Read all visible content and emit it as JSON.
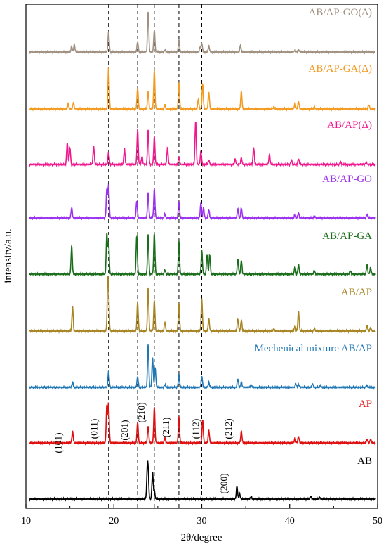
{
  "chart_data": {
    "type": "line",
    "title": "",
    "xlabel": "2θ/degree",
    "ylabel": "intensity/a.u.",
    "xlim": [
      10,
      50
    ],
    "xticks": [
      10,
      20,
      30,
      40,
      50
    ],
    "dashed_lines_x": [
      19.4,
      22.7,
      24.6,
      27.4,
      30.0
    ],
    "series": [
      {
        "name": "AB/AP-GO(Δ)",
        "color": "#a09080",
        "peaks": [
          [
            15.2,
            0.14
          ],
          [
            15.5,
            0.18
          ],
          [
            19.4,
            0.5
          ],
          [
            22.7,
            0.25
          ],
          [
            23.9,
            1.0
          ],
          [
            24.6,
            0.55
          ],
          [
            25.8,
            0.05
          ],
          [
            27.4,
            0.3
          ],
          [
            29.8,
            0.12
          ],
          [
            30.0,
            0.22
          ],
          [
            30.8,
            0.16
          ],
          [
            34.4,
            0.16
          ],
          [
            40.6,
            0.05
          ],
          [
            41.0,
            0.06
          ]
        ]
      },
      {
        "name": "AB/AP-GA(Δ)",
        "color": "#f39a20",
        "peaks": [
          [
            14.8,
            0.12
          ],
          [
            15.4,
            0.15
          ],
          [
            19.4,
            1.0
          ],
          [
            22.7,
            0.5
          ],
          [
            23.9,
            0.42
          ],
          [
            24.6,
            0.92
          ],
          [
            25.8,
            0.1
          ],
          [
            27.4,
            0.62
          ],
          [
            29.6,
            0.22
          ],
          [
            30.1,
            0.6
          ],
          [
            30.8,
            0.4
          ],
          [
            34.5,
            0.42
          ],
          [
            38.2,
            0.05
          ],
          [
            40.6,
            0.14
          ],
          [
            41.0,
            0.18
          ],
          [
            42.8,
            0.05
          ],
          [
            49.0,
            0.1
          ]
        ]
      },
      {
        "name": "AB/AP(Δ)",
        "color": "#f0188c",
        "peaks": [
          [
            14.7,
            0.5
          ],
          [
            15.0,
            0.38
          ],
          [
            17.7,
            0.42
          ],
          [
            19.4,
            0.28
          ],
          [
            21.2,
            0.35
          ],
          [
            22.7,
            0.78
          ],
          [
            23.2,
            0.18
          ],
          [
            23.9,
            0.78
          ],
          [
            24.6,
            0.62
          ],
          [
            26.1,
            0.38
          ],
          [
            27.4,
            0.18
          ],
          [
            29.3,
            0.98
          ],
          [
            29.9,
            0.3
          ],
          [
            30.8,
            0.1
          ],
          [
            33.8,
            0.12
          ],
          [
            34.5,
            0.15
          ],
          [
            35.9,
            0.38
          ],
          [
            37.7,
            0.22
          ],
          [
            40.2,
            0.1
          ],
          [
            41.0,
            0.13
          ],
          [
            45.8,
            0.05
          ],
          [
            48.7,
            0.05
          ]
        ]
      },
      {
        "name": "AB/AP-GO",
        "color": "#9b30ee",
        "peaks": [
          [
            15.2,
            0.25
          ],
          [
            19.2,
            0.72
          ],
          [
            19.4,
            0.82
          ],
          [
            22.6,
            0.42
          ],
          [
            23.9,
            0.62
          ],
          [
            24.6,
            0.72
          ],
          [
            25.8,
            0.1
          ],
          [
            27.4,
            0.42
          ],
          [
            29.9,
            0.38
          ],
          [
            30.2,
            0.25
          ],
          [
            30.8,
            0.2
          ],
          [
            34.1,
            0.22
          ],
          [
            34.5,
            0.25
          ],
          [
            40.6,
            0.1
          ],
          [
            41.0,
            0.12
          ],
          [
            42.8,
            0.05
          ],
          [
            48.8,
            0.08
          ]
        ]
      },
      {
        "name": "AB/AP-GA",
        "color": "#1a6d1a",
        "peaks": [
          [
            15.2,
            0.65
          ],
          [
            19.2,
            0.95
          ],
          [
            19.4,
            0.75
          ],
          [
            22.6,
            0.9
          ],
          [
            23.9,
            0.9
          ],
          [
            24.6,
            0.95
          ],
          [
            25.8,
            0.1
          ],
          [
            27.4,
            0.75
          ],
          [
            30.0,
            0.55
          ],
          [
            30.6,
            0.45
          ],
          [
            30.9,
            0.45
          ],
          [
            34.1,
            0.35
          ],
          [
            34.5,
            0.32
          ],
          [
            40.6,
            0.18
          ],
          [
            41.0,
            0.22
          ],
          [
            42.8,
            0.08
          ],
          [
            46.9,
            0.08
          ],
          [
            48.8,
            0.22
          ],
          [
            49.2,
            0.15
          ]
        ]
      },
      {
        "name": "AB/AP",
        "color": "#a88524",
        "peaks": [
          [
            15.3,
            0.55
          ],
          [
            19.3,
            0.88
          ],
          [
            19.4,
            0.72
          ],
          [
            22.7,
            0.65
          ],
          [
            23.9,
            0.98
          ],
          [
            24.6,
            0.7
          ],
          [
            25.8,
            0.2
          ],
          [
            27.4,
            0.62
          ],
          [
            30.0,
            0.72
          ],
          [
            30.8,
            0.28
          ],
          [
            34.1,
            0.28
          ],
          [
            34.5,
            0.25
          ],
          [
            38.2,
            0.05
          ],
          [
            40.6,
            0.12
          ],
          [
            41.0,
            0.45
          ],
          [
            42.8,
            0.05
          ],
          [
            48.8,
            0.12
          ],
          [
            49.2,
            0.08
          ]
        ]
      },
      {
        "name": "Mechenical mixture AB/AP",
        "color": "#1f77b4",
        "peaks": [
          [
            15.3,
            0.12
          ],
          [
            19.4,
            0.38
          ],
          [
            22.7,
            0.24
          ],
          [
            23.9,
            1.0
          ],
          [
            24.4,
            0.7
          ],
          [
            24.7,
            0.45
          ],
          [
            25.8,
            0.06
          ],
          [
            27.4,
            0.3
          ],
          [
            30.0,
            0.26
          ],
          [
            30.8,
            0.12
          ],
          [
            34.1,
            0.2
          ],
          [
            34.5,
            0.12
          ],
          [
            35.6,
            0.06
          ],
          [
            40.7,
            0.08
          ],
          [
            41.0,
            0.07
          ],
          [
            42.6,
            0.08
          ],
          [
            43.5,
            0.05
          ],
          [
            48.8,
            0.05
          ]
        ]
      },
      {
        "name": "AP",
        "color": "#e00f0f",
        "peaks": [
          [
            15.3,
            0.28
          ],
          [
            19.2,
            0.9
          ],
          [
            19.4,
            0.95
          ],
          [
            22.7,
            0.5
          ],
          [
            23.9,
            0.4
          ],
          [
            24.6,
            0.86
          ],
          [
            25.8,
            0.12
          ],
          [
            27.4,
            0.62
          ],
          [
            30.1,
            0.55
          ],
          [
            30.8,
            0.3
          ],
          [
            34.5,
            0.28
          ],
          [
            40.6,
            0.12
          ],
          [
            41.0,
            0.15
          ],
          [
            48.8,
            0.08
          ],
          [
            49.2,
            0.08
          ]
        ]
      },
      {
        "name": "AB",
        "color": "#000000",
        "peaks": [
          [
            23.8,
            0.6
          ],
          [
            23.9,
            0.55
          ],
          [
            24.4,
            0.62
          ],
          [
            24.6,
            0.2
          ],
          [
            34.0,
            0.3
          ],
          [
            34.3,
            0.12
          ],
          [
            35.6,
            0.06
          ],
          [
            42.4,
            0.07
          ],
          [
            43.4,
            0.04
          ]
        ]
      }
    ],
    "peak_labels": [
      {
        "text": "(101)",
        "x": 15.3
      },
      {
        "text": "(011)",
        "x": 19.4
      },
      {
        "text": "(201)",
        "x": 22.7
      },
      {
        "text": "(210)",
        "x": 24.6
      },
      {
        "text": "(211)",
        "x": 27.4
      },
      {
        "text": "(112)",
        "x": 30.8
      },
      {
        "text": "(212)",
        "x": 34.5
      },
      {
        "text": "(200)",
        "x": 34.0
      }
    ]
  }
}
